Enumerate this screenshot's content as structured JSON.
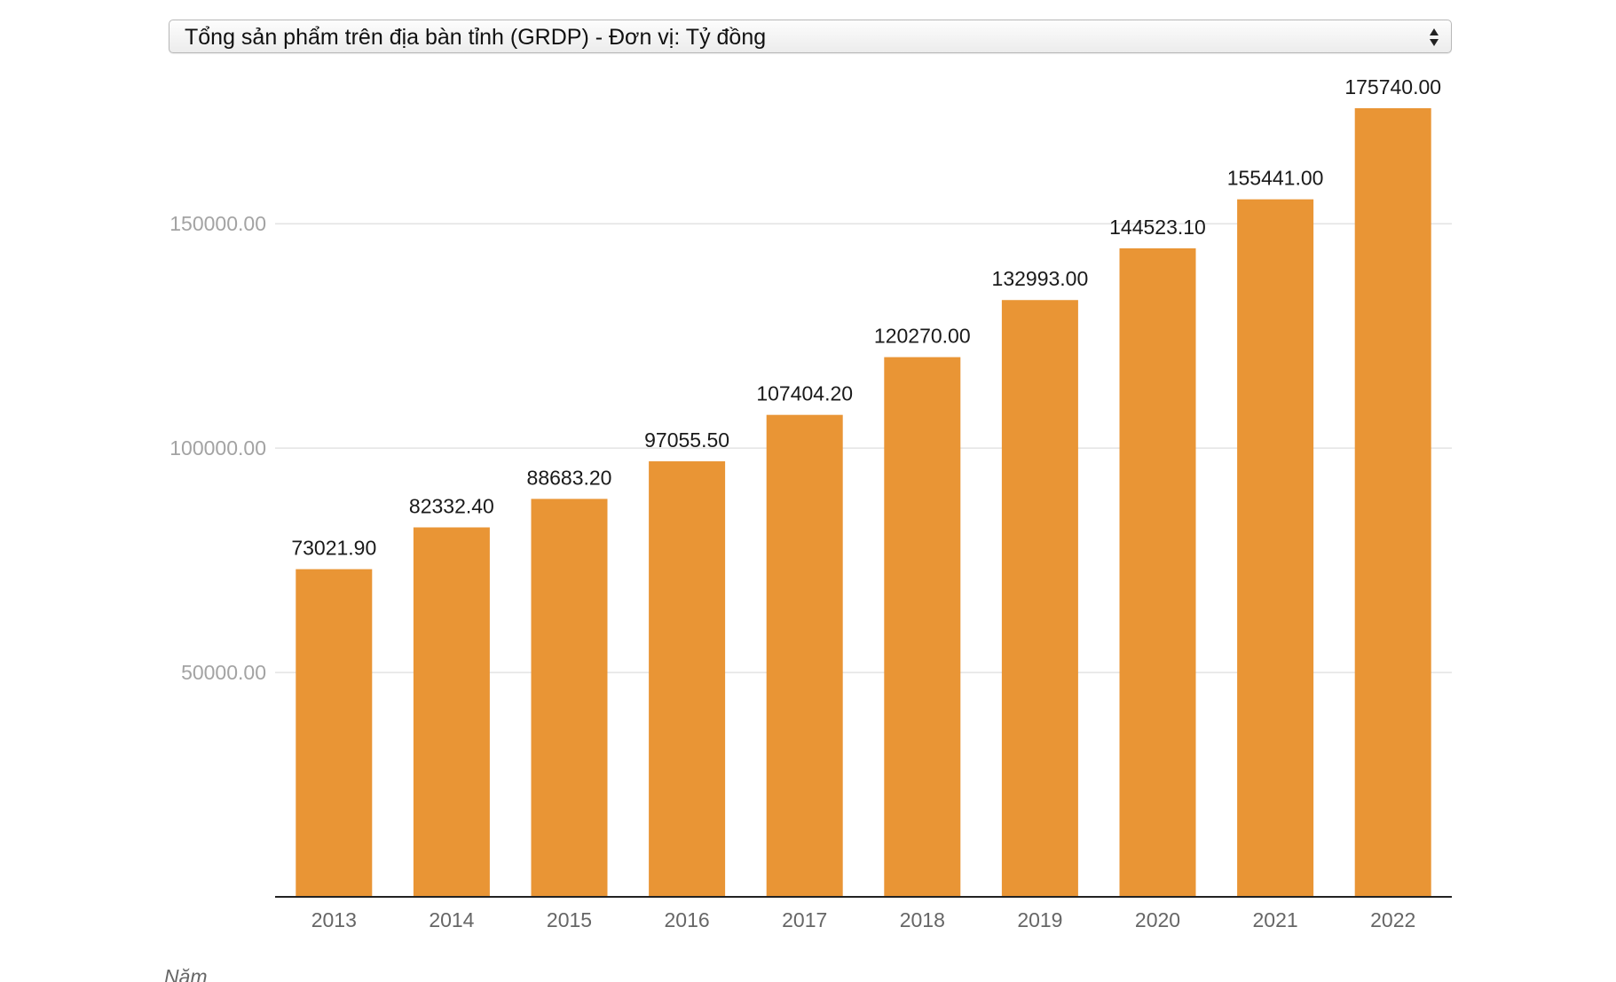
{
  "selector": {
    "selected": "Tổng sản phẩm trên địa bàn tỉnh (GRDP) - Đơn vị: Tỷ đồng"
  },
  "colors": {
    "bar": "#e99535",
    "grid": "#e3e3e3",
    "axis": "#222222"
  },
  "icons": {
    "select_arrows": "up-down-chevron-icon"
  },
  "chart_data": {
    "type": "bar",
    "title": "",
    "xlabel": "Năm",
    "ylabel": "",
    "categories": [
      "2013",
      "2014",
      "2015",
      "2016",
      "2017",
      "2018",
      "2019",
      "2020",
      "2021",
      "2022"
    ],
    "values": [
      73021.9,
      82332.4,
      88683.2,
      97055.5,
      107404.2,
      120270.0,
      132993.0,
      144523.1,
      155441.0,
      175740.0
    ],
    "value_labels": [
      "73021.90",
      "82332.40",
      "88683.20",
      "97055.50",
      "107404.20",
      "120270.00",
      "132993.00",
      "144523.10",
      "155441.00",
      "175740.00"
    ],
    "yticks": [
      50000,
      100000,
      150000
    ],
    "ytick_labels": [
      "50000.00",
      "100000.00",
      "150000.00"
    ],
    "ylim": [
      0,
      175740
    ],
    "grid": true,
    "legend": "none"
  }
}
